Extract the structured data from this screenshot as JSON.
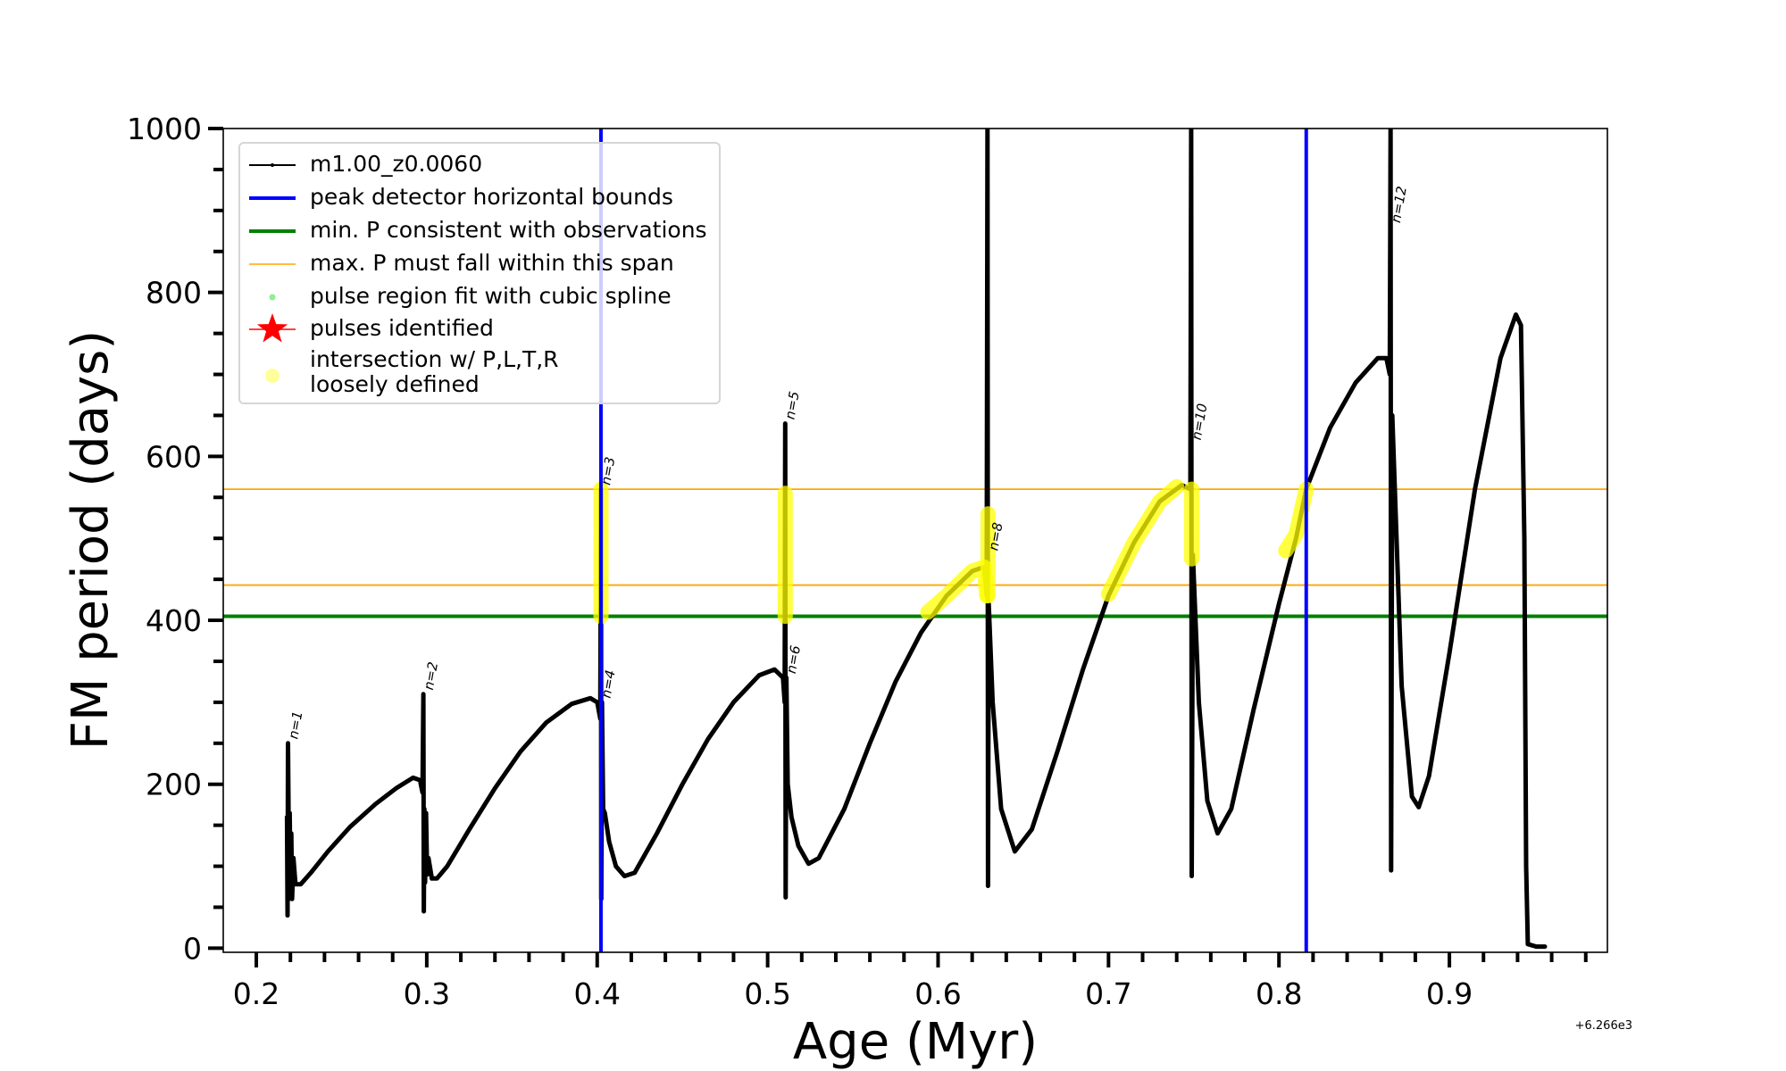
{
  "chart_data": {
    "type": "line",
    "xlabel": "Age (Myr)",
    "ylabel": "FM period (days)",
    "x_offset_text": "+6.266e3",
    "xlim": [
      0.1806,
      0.9927
    ],
    "ylim": [
      -5,
      1000
    ],
    "xticks": [
      0.2,
      0.3,
      0.4,
      0.5,
      0.6,
      0.7,
      0.8,
      0.9
    ],
    "xtick_labels": [
      "0.2",
      "0.3",
      "0.4",
      "0.5",
      "0.6",
      "0.7",
      "0.8",
      "0.9"
    ],
    "yticks": [
      0,
      200,
      400,
      600,
      800,
      1000
    ],
    "ytick_labels": [
      "0",
      "200",
      "400",
      "600",
      "800",
      "1000"
    ],
    "grid": false,
    "legend_position": "top-left",
    "legend": [
      {
        "label": "m1.00_z0.0060",
        "kind": "line-dot",
        "color": "#000000"
      },
      {
        "label": "peak detector horizontal bounds",
        "kind": "line",
        "color": "#0000ff"
      },
      {
        "label": "min. P consistent with observations",
        "kind": "line",
        "color": "#008000"
      },
      {
        "label": "max. P must fall within this span",
        "kind": "thin-line",
        "color": "#ffa500"
      },
      {
        "label": "pulse region fit with cubic spline",
        "kind": "dot",
        "color": "#90ee90"
      },
      {
        "label": "pulses identified",
        "kind": "star",
        "color": "#ff0000"
      },
      {
        "label": "intersection w/ P,L,T,R",
        "label2": "loosely defined",
        "kind": "circle",
        "color": "#ffff99"
      }
    ],
    "colors": {
      "curve": "#000000",
      "blue": "#0000ff",
      "green": "#008000",
      "orange": "#ffa500",
      "yellow": "#ffff00"
    },
    "vlines": [
      0.4022,
      0.816
    ],
    "hline_min": 405,
    "hlines_span": [
      443,
      560
    ],
    "series": [
      {
        "name": "m1.00_z0.0060",
        "points": [
          [
            0.218,
            160
          ],
          [
            0.2183,
            40
          ],
          [
            0.2186,
            250
          ],
          [
            0.2189,
            170
          ],
          [
            0.2192,
            60
          ],
          [
            0.2196,
            165
          ],
          [
            0.22,
            90
          ],
          [
            0.2205,
            140
          ],
          [
            0.221,
            60
          ],
          [
            0.2218,
            110
          ],
          [
            0.223,
            78
          ],
          [
            0.226,
            78
          ],
          [
            0.232,
            92
          ],
          [
            0.242,
            118
          ],
          [
            0.255,
            148
          ],
          [
            0.27,
            176
          ],
          [
            0.282,
            195
          ],
          [
            0.292,
            208
          ],
          [
            0.296,
            205
          ],
          [
            0.2975,
            190
          ],
          [
            0.298,
            310
          ],
          [
            0.2983,
            45
          ],
          [
            0.2986,
            170
          ],
          [
            0.299,
            80
          ],
          [
            0.2996,
            165
          ],
          [
            0.3002,
            90
          ],
          [
            0.301,
            110
          ],
          [
            0.303,
            85
          ],
          [
            0.306,
            85
          ],
          [
            0.312,
            100
          ],
          [
            0.325,
            145
          ],
          [
            0.34,
            195
          ],
          [
            0.355,
            240
          ],
          [
            0.37,
            275
          ],
          [
            0.385,
            298
          ],
          [
            0.396,
            305
          ],
          [
            0.4,
            300
          ],
          [
            0.4018,
            280
          ],
          [
            0.4022,
            560
          ],
          [
            0.4024,
            60
          ],
          [
            0.4028,
            300
          ],
          [
            0.4035,
            170
          ],
          [
            0.4045,
            165
          ],
          [
            0.407,
            130
          ],
          [
            0.411,
            100
          ],
          [
            0.416,
            88
          ],
          [
            0.422,
            92
          ],
          [
            0.435,
            140
          ],
          [
            0.45,
            200
          ],
          [
            0.465,
            255
          ],
          [
            0.48,
            300
          ],
          [
            0.495,
            333
          ],
          [
            0.504,
            340
          ],
          [
            0.509,
            330
          ],
          [
            0.51,
            300
          ],
          [
            0.5103,
            640
          ],
          [
            0.5106,
            62
          ],
          [
            0.511,
            330
          ],
          [
            0.5118,
            200
          ],
          [
            0.514,
            160
          ],
          [
            0.518,
            125
          ],
          [
            0.524,
            103
          ],
          [
            0.53,
            110
          ],
          [
            0.545,
            170
          ],
          [
            0.56,
            250
          ],
          [
            0.575,
            325
          ],
          [
            0.59,
            385
          ],
          [
            0.605,
            430
          ],
          [
            0.62,
            460
          ],
          [
            0.627,
            465
          ],
          [
            0.6285,
            430
          ],
          [
            0.629,
            1000
          ],
          [
            0.6293,
            76
          ],
          [
            0.6297,
            420
          ],
          [
            0.632,
            300
          ],
          [
            0.637,
            170
          ],
          [
            0.645,
            118
          ],
          [
            0.655,
            145
          ],
          [
            0.67,
            240
          ],
          [
            0.685,
            340
          ],
          [
            0.7,
            430
          ],
          [
            0.715,
            495
          ],
          [
            0.73,
            545
          ],
          [
            0.743,
            565
          ],
          [
            0.748,
            560
          ],
          [
            0.7485,
            1000
          ],
          [
            0.7488,
            88
          ],
          [
            0.7495,
            480
          ],
          [
            0.753,
            300
          ],
          [
            0.758,
            180
          ],
          [
            0.764,
            140
          ],
          [
            0.772,
            170
          ],
          [
            0.785,
            290
          ],
          [
            0.8,
            420
          ],
          [
            0.81,
            500
          ],
          [
            0.816,
            560
          ],
          [
            0.83,
            635
          ],
          [
            0.845,
            690
          ],
          [
            0.858,
            720
          ],
          [
            0.863,
            720
          ],
          [
            0.865,
            700
          ],
          [
            0.8655,
            1000
          ],
          [
            0.8658,
            95
          ],
          [
            0.8665,
            650
          ],
          [
            0.872,
            320
          ],
          [
            0.878,
            185
          ],
          [
            0.882,
            172
          ],
          [
            0.888,
            210
          ],
          [
            0.9,
            360
          ],
          [
            0.915,
            560
          ],
          [
            0.93,
            720
          ],
          [
            0.939,
            773
          ],
          [
            0.942,
            760
          ],
          [
            0.944,
            500
          ],
          [
            0.945,
            100
          ],
          [
            0.946,
            5
          ],
          [
            0.951,
            2
          ],
          [
            0.956,
            2
          ]
        ]
      }
    ],
    "yellow_regions": [
      {
        "points": [
          [
            0.4022,
            405
          ],
          [
            0.4022,
            560
          ]
        ]
      },
      {
        "points": [
          [
            0.5103,
            405
          ],
          [
            0.5103,
            555
          ]
        ]
      },
      {
        "points": [
          [
            0.594,
            410
          ],
          [
            0.605,
            430
          ],
          [
            0.62,
            460
          ],
          [
            0.627,
            465
          ],
          [
            0.6285,
            430
          ]
        ]
      },
      {
        "points": [
          [
            0.6293,
            430
          ],
          [
            0.6293,
            530
          ]
        ]
      },
      {
        "points": [
          [
            0.7,
            432
          ],
          [
            0.715,
            495
          ],
          [
            0.73,
            545
          ],
          [
            0.74,
            563
          ]
        ]
      },
      {
        "points": [
          [
            0.7488,
            475
          ],
          [
            0.7488,
            560
          ]
        ]
      },
      {
        "points": [
          [
            0.804,
            485
          ],
          [
            0.81,
            505
          ],
          [
            0.816,
            560
          ]
        ]
      }
    ],
    "annotations": [
      {
        "text": "n=1",
        "x": 0.2189,
        "y": 250
      },
      {
        "text": "n=2",
        "x": 0.2983,
        "y": 310
      },
      {
        "text": "n=3",
        "x": 0.4022,
        "y": 560
      },
      {
        "text": "n=4",
        "x": 0.4024,
        "y": 300
      },
      {
        "text": "n=5",
        "x": 0.5103,
        "y": 640
      },
      {
        "text": "n=6",
        "x": 0.511,
        "y": 330
      },
      {
        "text": "n=8",
        "x": 0.6297,
        "y": 480
      },
      {
        "text": "n=10",
        "x": 0.7488,
        "y": 615
      },
      {
        "text": "n=12",
        "x": 0.8658,
        "y": 880
      }
    ]
  }
}
